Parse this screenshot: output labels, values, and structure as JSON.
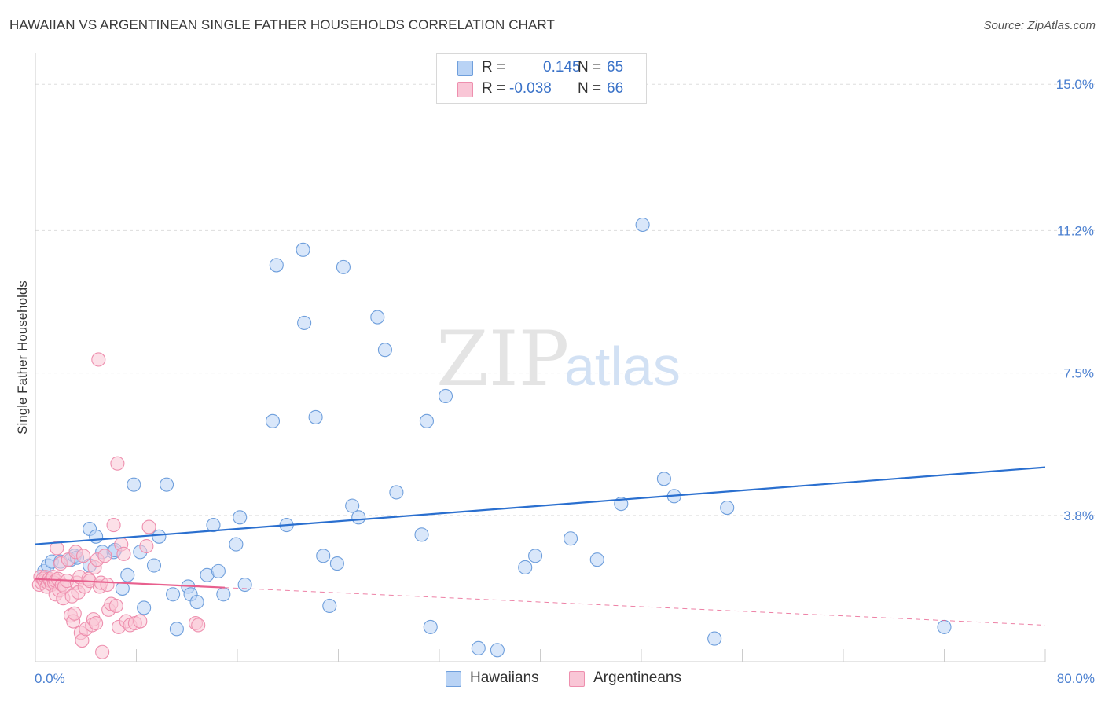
{
  "title": "HAWAIIAN VS ARGENTINEAN SINGLE FATHER HOUSEHOLDS CORRELATION CHART",
  "source": "Source: ZipAtlas.com",
  "watermark": {
    "zip": "ZIP",
    "atlas": "atlas"
  },
  "colors": {
    "hawaiians_fill": "#b9d3f5",
    "hawaiians_stroke": "#6f9fdc",
    "hawaiians_line": "#2a6fcf",
    "argentineans_fill": "#f9c6d6",
    "argentineans_stroke": "#ee8fae",
    "argentineans_line": "#e8608e",
    "grid": "#dddddd",
    "tick_text": "#4a7fd0"
  },
  "legend": {
    "rows": [
      {
        "r_label": "R =",
        "r_value": "0.145",
        "n_label": "N =",
        "n_value": "65"
      },
      {
        "r_label": "R =",
        "r_value": "-0.038",
        "n_label": "N =",
        "n_value": "66"
      }
    ],
    "series_names": [
      "Hawaiians",
      "Argentineans"
    ]
  },
  "chart_data": {
    "type": "scatter",
    "title": "HAWAIIAN VS ARGENTINEAN SINGLE FATHER HOUSEHOLDS CORRELATION CHART",
    "xlabel": "",
    "ylabel": "Single Father Households",
    "xlim": [
      0,
      80
    ],
    "ylim": [
      0,
      15.8
    ],
    "x_tick_labels": [
      "0.0%",
      "80.0%"
    ],
    "y_ticks": [
      3.8,
      7.5,
      11.2,
      15.0
    ],
    "y_tick_labels": [
      "3.8%",
      "7.5%",
      "11.2%",
      "15.0%"
    ],
    "legend_position": "top-center",
    "series": [
      {
        "name": "Hawaiians",
        "r": 0.145,
        "n": 65,
        "trend": {
          "x": [
            0,
            80
          ],
          "y": [
            3.05,
            5.05
          ],
          "solid_range": [
            0,
            80
          ]
        },
        "points": [
          [
            0.7,
            2.35
          ],
          [
            1.0,
            2.5
          ],
          [
            1.3,
            2.6
          ],
          [
            2.0,
            2.6
          ],
          [
            2.8,
            2.65
          ],
          [
            3.1,
            2.75
          ],
          [
            3.3,
            2.7
          ],
          [
            4.3,
            2.5
          ],
          [
            4.3,
            3.45
          ],
          [
            4.8,
            3.25
          ],
          [
            5.3,
            2.85
          ],
          [
            6.2,
            2.85
          ],
          [
            6.3,
            2.9
          ],
          [
            6.9,
            1.9
          ],
          [
            7.3,
            2.25
          ],
          [
            7.8,
            4.6
          ],
          [
            8.3,
            2.85
          ],
          [
            8.6,
            1.4
          ],
          [
            9.4,
            2.5
          ],
          [
            9.8,
            3.25
          ],
          [
            10.4,
            4.6
          ],
          [
            10.9,
            1.75
          ],
          [
            11.2,
            0.85
          ],
          [
            12.1,
            1.95
          ],
          [
            12.3,
            1.75
          ],
          [
            12.8,
            1.55
          ],
          [
            13.6,
            2.25
          ],
          [
            14.1,
            3.55
          ],
          [
            14.5,
            2.35
          ],
          [
            14.9,
            1.75
          ],
          [
            15.9,
            3.05
          ],
          [
            16.2,
            3.75
          ],
          [
            16.6,
            2.0
          ],
          [
            18.8,
            6.25
          ],
          [
            19.1,
            10.3
          ],
          [
            19.9,
            3.55
          ],
          [
            21.2,
            10.7
          ],
          [
            21.3,
            8.8
          ],
          [
            22.2,
            6.35
          ],
          [
            22.8,
            2.75
          ],
          [
            23.3,
            1.45
          ],
          [
            23.9,
            2.55
          ],
          [
            24.4,
            10.25
          ],
          [
            25.1,
            4.05
          ],
          [
            25.6,
            3.75
          ],
          [
            27.1,
            8.95
          ],
          [
            27.7,
            8.1
          ],
          [
            28.6,
            4.4
          ],
          [
            30.6,
            3.3
          ],
          [
            31.0,
            6.25
          ],
          [
            31.3,
            0.9
          ],
          [
            32.5,
            6.9
          ],
          [
            35.1,
            0.35
          ],
          [
            36.6,
            0.3
          ],
          [
            38.8,
            2.45
          ],
          [
            39.6,
            2.75
          ],
          [
            42.4,
            3.2
          ],
          [
            44.5,
            2.65
          ],
          [
            46.4,
            4.1
          ],
          [
            48.1,
            11.35
          ],
          [
            49.8,
            4.75
          ],
          [
            50.6,
            4.3
          ],
          [
            53.8,
            0.6
          ],
          [
            54.8,
            4.0
          ],
          [
            72.0,
            0.9
          ]
        ]
      },
      {
        "name": "Argentineans",
        "r": -0.038,
        "n": 66,
        "trend": {
          "x": [
            0,
            80
          ],
          "y": [
            2.15,
            0.95
          ],
          "solid_range": [
            0,
            15
          ]
        },
        "points": [
          [
            0.3,
            2.0
          ],
          [
            0.4,
            2.2
          ],
          [
            0.5,
            2.05
          ],
          [
            0.6,
            2.15
          ],
          [
            0.7,
            2.1
          ],
          [
            0.8,
            2.2
          ],
          [
            0.9,
            1.95
          ],
          [
            1.0,
            2.05
          ],
          [
            1.1,
            2.15
          ],
          [
            1.2,
            2.1
          ],
          [
            1.3,
            2.0
          ],
          [
            1.4,
            2.2
          ],
          [
            1.5,
            2.05
          ],
          [
            1.6,
            1.75
          ],
          [
            1.6,
            2.1
          ],
          [
            1.7,
            2.95
          ],
          [
            1.8,
            2.15
          ],
          [
            1.9,
            1.85
          ],
          [
            2.0,
            2.55
          ],
          [
            2.1,
            2.0
          ],
          [
            2.2,
            1.65
          ],
          [
            2.3,
            1.95
          ],
          [
            2.5,
            2.1
          ],
          [
            2.6,
            2.65
          ],
          [
            2.8,
            1.2
          ],
          [
            2.9,
            1.7
          ],
          [
            3.0,
            1.05
          ],
          [
            3.1,
            1.25
          ],
          [
            3.2,
            2.85
          ],
          [
            3.3,
            2.05
          ],
          [
            3.4,
            1.8
          ],
          [
            3.5,
            2.2
          ],
          [
            3.6,
            0.75
          ],
          [
            3.7,
            0.55
          ],
          [
            3.8,
            2.75
          ],
          [
            3.9,
            1.95
          ],
          [
            4.0,
            0.85
          ],
          [
            4.2,
            2.15
          ],
          [
            4.3,
            2.1
          ],
          [
            4.5,
            0.95
          ],
          [
            4.6,
            1.1
          ],
          [
            4.7,
            2.45
          ],
          [
            4.8,
            1.0
          ],
          [
            4.9,
            2.65
          ],
          [
            5.0,
            7.85
          ],
          [
            5.1,
            1.95
          ],
          [
            5.2,
            2.05
          ],
          [
            5.3,
            0.25
          ],
          [
            5.5,
            2.75
          ],
          [
            5.7,
            2.0
          ],
          [
            5.8,
            1.35
          ],
          [
            6.0,
            1.5
          ],
          [
            6.2,
            3.55
          ],
          [
            6.4,
            1.45
          ],
          [
            6.5,
            5.15
          ],
          [
            6.6,
            0.9
          ],
          [
            6.8,
            3.05
          ],
          [
            7.0,
            2.8
          ],
          [
            7.2,
            1.05
          ],
          [
            7.5,
            0.95
          ],
          [
            7.9,
            1.0
          ],
          [
            8.3,
            1.05
          ],
          [
            8.8,
            3.0
          ],
          [
            9.0,
            3.5
          ],
          [
            12.7,
            1.0
          ],
          [
            12.9,
            0.95
          ]
        ]
      }
    ]
  }
}
